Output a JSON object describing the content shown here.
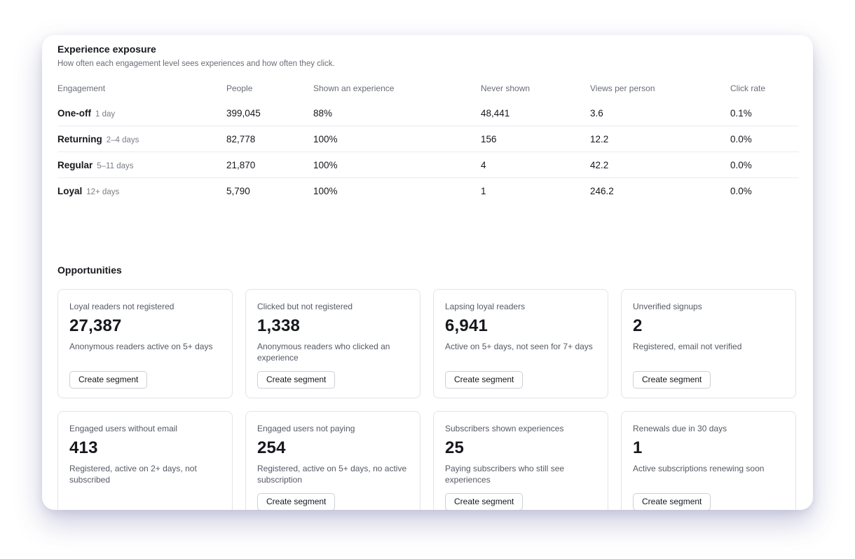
{
  "exposure": {
    "title": "Experience exposure",
    "subtitle": "How often each engagement level sees experiences and how often they click.",
    "columns": [
      "Engagement",
      "People",
      "Shown an experience",
      "Never shown",
      "Views per person",
      "Click rate"
    ],
    "rows": [
      {
        "name": "One-off",
        "days": "1 day",
        "people": "399,045",
        "shown": "88%",
        "never": "48,441",
        "views": "3.6",
        "click": "0.1%"
      },
      {
        "name": "Returning",
        "days": "2–4 days",
        "people": "82,778",
        "shown": "100%",
        "never": "156",
        "views": "12.2",
        "click": "0.0%"
      },
      {
        "name": "Regular",
        "days": "5–11 days",
        "people": "21,870",
        "shown": "100%",
        "never": "4",
        "views": "42.2",
        "click": "0.0%"
      },
      {
        "name": "Loyal",
        "days": "12+ days",
        "people": "5,790",
        "shown": "100%",
        "never": "1",
        "views": "246.2",
        "click": "0.0%"
      }
    ]
  },
  "opportunities": {
    "title": "Opportunities",
    "button_label": "Create segment",
    "tiles": [
      {
        "label": "Loyal readers not registered",
        "value": "27,387",
        "desc": "Anonymous readers active on 5+ days"
      },
      {
        "label": "Clicked but not registered",
        "value": "1,338",
        "desc": "Anonymous readers who clicked an experience"
      },
      {
        "label": "Lapsing loyal readers",
        "value": "6,941",
        "desc": "Active on 5+ days, not seen for 7+ days"
      },
      {
        "label": "Unverified signups",
        "value": "2",
        "desc": "Registered, email not verified"
      },
      {
        "label": "Engaged users without email",
        "value": "413",
        "desc": "Registered, active on 2+ days, not subscribed"
      },
      {
        "label": "Engaged users not paying",
        "value": "254",
        "desc": "Registered, active on 5+ days, no active subscription"
      },
      {
        "label": "Subscribers shown experiences",
        "value": "25",
        "desc": "Paying subscribers who still see experiences"
      },
      {
        "label": "Renewals due in 30 days",
        "value": "1",
        "desc": "Active subscriptions renewing soon"
      }
    ]
  }
}
